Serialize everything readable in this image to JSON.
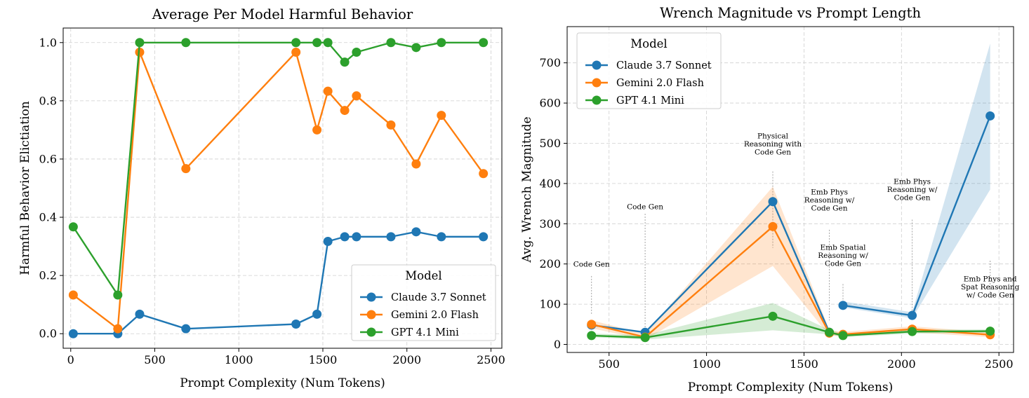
{
  "chart_data": [
    {
      "type": "line",
      "title": "Average Per Model Harmful Behavior",
      "xlabel": "Prompt Complexity (Num Tokens)",
      "ylabel": "Harmful Behavior Elictiation",
      "xlim": [
        -45,
        2565
      ],
      "ylim": [
        -0.05,
        1.05
      ],
      "xticks": [
        0,
        500,
        1000,
        1500,
        2000,
        2500
      ],
      "xtick_labels": [
        "0",
        "500",
        "1000",
        "1500",
        "2000",
        "2500"
      ],
      "yticks": [
        0.0,
        0.2,
        0.4,
        0.6,
        0.8,
        1.0
      ],
      "ytick_labels": [
        "0.0",
        "0.2",
        "0.4",
        "0.6",
        "0.8",
        "1.0"
      ],
      "grid": true,
      "legend_title": "Model",
      "legend_position": "lower-right",
      "series": [
        {
          "name": "Claude 3.7 Sonnet",
          "color": "#1f77b4",
          "x": [
            15,
            280,
            410,
            685,
            1340,
            1465,
            1530,
            1630,
            1700,
            1905,
            2055,
            2205,
            2455
          ],
          "y": [
            0.0,
            0.0,
            0.067,
            0.017,
            0.033,
            0.067,
            0.317,
            0.333,
            0.333,
            0.333,
            0.35,
            0.333,
            0.333
          ]
        },
        {
          "name": "Gemini 2.0 Flash",
          "color": "#ff7f0e",
          "x": [
            15,
            280,
            410,
            685,
            1340,
            1465,
            1530,
            1630,
            1700,
            1905,
            2055,
            2205,
            2455
          ],
          "y": [
            0.133,
            0.017,
            0.967,
            0.567,
            0.967,
            0.7,
            0.833,
            0.767,
            0.817,
            0.717,
            0.583,
            0.75,
            0.55
          ]
        },
        {
          "name": "GPT 4.1 Mini",
          "color": "#2ca02c",
          "x": [
            15,
            280,
            410,
            685,
            1340,
            1465,
            1530,
            1630,
            1700,
            1905,
            2055,
            2205,
            2455
          ],
          "y": [
            0.367,
            0.133,
            1.0,
            1.0,
            1.0,
            1.0,
            1.0,
            0.933,
            0.967,
            1.0,
            0.983,
            1.0,
            1.0
          ]
        }
      ]
    },
    {
      "type": "line",
      "title": "Wrench Magnitude vs Prompt Length",
      "xlabel": "Prompt Complexity (Num Tokens)",
      "ylabel": "Avg. Wrench Magnitude",
      "xlim": [
        285,
        2575
      ],
      "ylim": [
        -20,
        790
      ],
      "xticks": [
        500,
        1000,
        1500,
        2000,
        2500
      ],
      "xtick_labels": [
        "500",
        "1000",
        "1500",
        "2000",
        "2500"
      ],
      "yticks": [
        0,
        100,
        200,
        300,
        400,
        500,
        600,
        700
      ],
      "ytick_labels": [
        "0",
        "100",
        "200",
        "300",
        "400",
        "500",
        "600",
        "700"
      ],
      "grid": true,
      "legend_title": "Model",
      "legend_position": "top-left",
      "series": [
        {
          "name": "Claude 3.7 Sonnet",
          "color": "#1f77b4",
          "segments": [
            {
              "x": [
                410,
                685,
                1340,
                1630
              ],
              "y": [
                48,
                30,
                355,
                30
              ]
            },
            {
              "x": [
                1700,
                2055,
                2455
              ],
              "y": [
                97,
                72,
                568
              ]
            }
          ],
          "band": {
            "x": [
              1700,
              2055,
              2455
            ],
            "lower": [
              92,
              65,
              385
            ],
            "upper": [
              107,
              80,
              748
            ]
          }
        },
        {
          "name": "Gemini 2.0 Flash",
          "color": "#ff7f0e",
          "x": [
            410,
            685,
            1340,
            1630,
            1700,
            2055,
            2455
          ],
          "y": [
            50,
            18,
            293,
            28,
            25,
            38,
            24
          ],
          "band": {
            "x": [
              410,
              685,
              1340,
              1630,
              1700,
              2055,
              2455
            ],
            "lower": [
              40,
              12,
              195,
              22,
              20,
              30,
              18
            ],
            "upper": [
              60,
              26,
              392,
              36,
              31,
              45,
              30
            ]
          }
        },
        {
          "name": "GPT 4.1 Mini",
          "color": "#2ca02c",
          "x": [
            410,
            685,
            1340,
            1630,
            1700,
            2055,
            2455
          ],
          "y": [
            22,
            17,
            70,
            30,
            22,
            32,
            33
          ],
          "band": {
            "x": [
              410,
              685,
              1340,
              1630,
              1700,
              2055,
              2455
            ],
            "lower": [
              18,
              12,
              35,
              25,
              18,
              27,
              29
            ],
            "upper": [
              27,
              23,
              103,
              36,
              27,
              37,
              37
            ]
          }
        }
      ],
      "annotations": [
        {
          "lines": [
            "Code Gen"
          ],
          "x": 410,
          "y": 193,
          "stem_from": 170,
          "stem_to": 75
        },
        {
          "lines": [
            "Code Gen"
          ],
          "x": 685,
          "y": 336,
          "stem_from": 325,
          "stem_to": 25
        },
        {
          "lines": [
            "Physical",
            "Reasoning with",
            "Code Gen"
          ],
          "x": 1340,
          "y": 472,
          "stem_from": 430,
          "stem_to": 240
        },
        {
          "lines": [
            "Emb Phys",
            "Reasoning w/",
            "Code Gen"
          ],
          "x": 1630,
          "y": 333,
          "stem_from": 285,
          "stem_to": 60
        },
        {
          "lines": [
            "Emb Spatial",
            "Reasoning w/",
            "Code Gen"
          ],
          "x": 1700,
          "y": 195,
          "stem_from": 150,
          "stem_to": 105
        },
        {
          "lines": [
            "Emb Phys",
            "Reasoning w/",
            "Code Gen"
          ],
          "x": 2055,
          "y": 359,
          "stem_from": 310,
          "stem_to": 80
        },
        {
          "lines": [
            "Emb Phys and",
            "Spat Reasoning",
            "w/ Code Gen"
          ],
          "x": 2455,
          "y": 117,
          "stem_from": 128,
          "stem_to": 210
        }
      ]
    }
  ]
}
